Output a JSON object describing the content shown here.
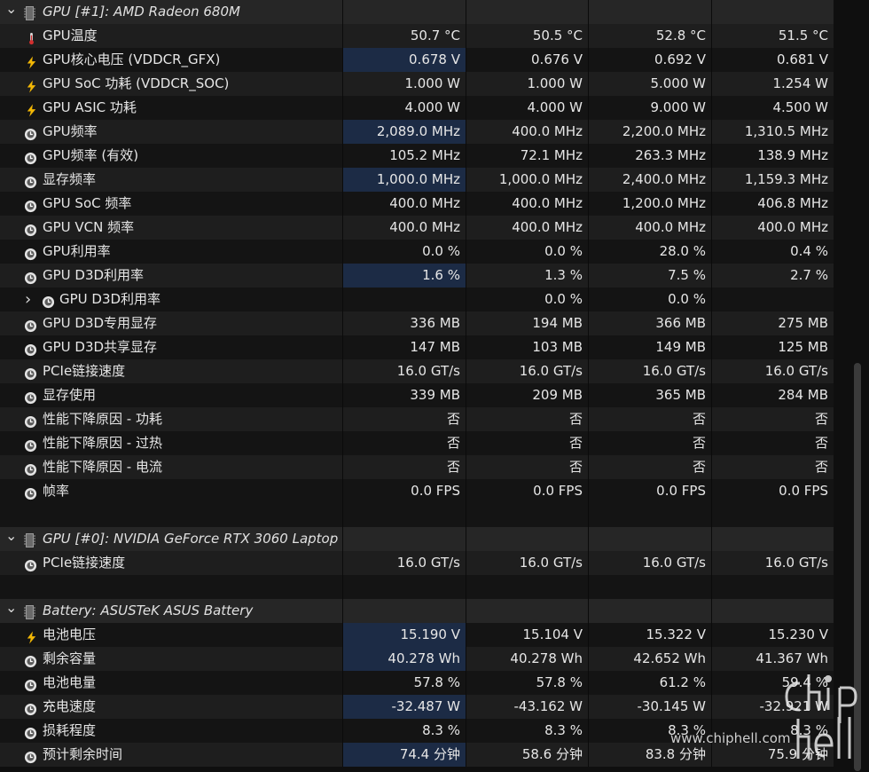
{
  "rows": [
    {
      "type": "group",
      "icon": "chip-icon",
      "label": "GPU [#1]: AMD Radeon 680M"
    },
    {
      "type": "sensor",
      "icon": "thermometer-icon",
      "label": "GPU温度",
      "values": [
        "50.7 °C",
        "50.5 °C",
        "52.8 °C",
        "51.5 °C"
      ],
      "hl": false
    },
    {
      "type": "sensor",
      "icon": "voltage-icon",
      "label": "GPU核心电压 (VDDCR_GFX)",
      "values": [
        "0.678 V",
        "0.676 V",
        "0.692 V",
        "0.681 V"
      ],
      "hl": true
    },
    {
      "type": "sensor",
      "icon": "voltage-icon",
      "label": "GPU SoC 功耗 (VDDCR_SOC)",
      "values": [
        "1.000 W",
        "1.000 W",
        "5.000 W",
        "1.254 W"
      ],
      "hl": false
    },
    {
      "type": "sensor",
      "icon": "voltage-icon",
      "label": "GPU ASIC 功耗",
      "values": [
        "4.000 W",
        "4.000 W",
        "9.000 W",
        "4.500 W"
      ],
      "hl": false
    },
    {
      "type": "sensor",
      "icon": "clock-icon",
      "label": "GPU频率",
      "values": [
        "2,089.0 MHz",
        "400.0 MHz",
        "2,200.0 MHz",
        "1,310.5 MHz"
      ],
      "hl": true
    },
    {
      "type": "sensor",
      "icon": "clock-icon",
      "label": "GPU频率 (有效)",
      "values": [
        "105.2 MHz",
        "72.1 MHz",
        "263.3 MHz",
        "138.9 MHz"
      ],
      "hl": false
    },
    {
      "type": "sensor",
      "icon": "clock-icon",
      "label": "显存频率",
      "values": [
        "1,000.0 MHz",
        "1,000.0 MHz",
        "2,400.0 MHz",
        "1,159.3 MHz"
      ],
      "hl": true
    },
    {
      "type": "sensor",
      "icon": "clock-icon",
      "label": "GPU SoC 频率",
      "values": [
        "400.0 MHz",
        "400.0 MHz",
        "1,200.0 MHz",
        "406.8 MHz"
      ],
      "hl": false
    },
    {
      "type": "sensor",
      "icon": "clock-icon",
      "label": "GPU VCN 频率",
      "values": [
        "400.0 MHz",
        "400.0 MHz",
        "400.0 MHz",
        "400.0 MHz"
      ],
      "hl": false
    },
    {
      "type": "sensor",
      "icon": "clock-icon",
      "label": "GPU利用率",
      "values": [
        "0.0 %",
        "0.0 %",
        "28.0 %",
        "0.4 %"
      ],
      "hl": false
    },
    {
      "type": "sensor",
      "icon": "clock-icon",
      "label": "GPU D3D利用率",
      "values": [
        "1.6 %",
        "1.3 %",
        "7.5 %",
        "2.7 %"
      ],
      "hl": true
    },
    {
      "type": "sub",
      "icon": "clock-icon",
      "label": "GPU D3D利用率",
      "values": [
        "",
        "0.0 %",
        "0.0 %",
        ""
      ],
      "hl": false
    },
    {
      "type": "sensor",
      "icon": "clock-icon",
      "label": "GPU D3D专用显存",
      "values": [
        "336 MB",
        "194 MB",
        "366 MB",
        "275 MB"
      ],
      "hl": false
    },
    {
      "type": "sensor",
      "icon": "clock-icon",
      "label": "GPU D3D共享显存",
      "values": [
        "147 MB",
        "103 MB",
        "149 MB",
        "125 MB"
      ],
      "hl": false
    },
    {
      "type": "sensor",
      "icon": "clock-icon",
      "label": "PCIe链接速度",
      "values": [
        "16.0 GT/s",
        "16.0 GT/s",
        "16.0 GT/s",
        "16.0 GT/s"
      ],
      "hl": false
    },
    {
      "type": "sensor",
      "icon": "clock-icon",
      "label": "显存使用",
      "values": [
        "339 MB",
        "209 MB",
        "365 MB",
        "284 MB"
      ],
      "hl": false
    },
    {
      "type": "sensor",
      "icon": "clock-icon",
      "label": "性能下降原因 - 功耗",
      "values": [
        "否",
        "否",
        "否",
        "否"
      ],
      "hl": false
    },
    {
      "type": "sensor",
      "icon": "clock-icon",
      "label": "性能下降原因 - 过热",
      "values": [
        "否",
        "否",
        "否",
        "否"
      ],
      "hl": false
    },
    {
      "type": "sensor",
      "icon": "clock-icon",
      "label": "性能下降原因 - 电流",
      "values": [
        "否",
        "否",
        "否",
        "否"
      ],
      "hl": false
    },
    {
      "type": "sensor",
      "icon": "clock-icon",
      "label": "帧率",
      "values": [
        "0.0 FPS",
        "0.0 FPS",
        "0.0 FPS",
        "0.0 FPS"
      ],
      "hl": false
    },
    {
      "type": "gap"
    },
    {
      "type": "group",
      "icon": "chip-icon",
      "label": "GPU [#0]: NVIDIA GeForce RTX 3060 Laptop"
    },
    {
      "type": "sensor",
      "icon": "clock-icon",
      "label": "PCIe链接速度",
      "values": [
        "16.0 GT/s",
        "16.0 GT/s",
        "16.0 GT/s",
        "16.0 GT/s"
      ],
      "hl": false
    },
    {
      "type": "gap"
    },
    {
      "type": "group",
      "icon": "chip-icon",
      "label": "Battery: ASUSTeK ASUS Battery"
    },
    {
      "type": "sensor",
      "icon": "voltage-icon",
      "label": "电池电压",
      "values": [
        "15.190 V",
        "15.104 V",
        "15.322 V",
        "15.230 V"
      ],
      "hl": true
    },
    {
      "type": "sensor",
      "icon": "clock-icon",
      "label": "剩余容量",
      "values": [
        "40.278 Wh",
        "40.278 Wh",
        "42.652 Wh",
        "41.367 Wh"
      ],
      "hl": true
    },
    {
      "type": "sensor",
      "icon": "clock-icon",
      "label": "电池电量",
      "values": [
        "57.8 %",
        "57.8 %",
        "61.2 %",
        "59.4 %"
      ],
      "hl": false
    },
    {
      "type": "sensor",
      "icon": "clock-icon",
      "label": "充电速度",
      "values": [
        "-32.487 W",
        "-43.162 W",
        "-30.145 W",
        "-32.921 W"
      ],
      "hl": true
    },
    {
      "type": "sensor",
      "icon": "clock-icon",
      "label": "损耗程度",
      "values": [
        "8.3 %",
        "8.3 %",
        "8.3 %",
        "8.3 %"
      ],
      "hl": false
    },
    {
      "type": "sensor",
      "icon": "clock-icon",
      "label": "预计剩余时间",
      "values": [
        "74.4 分钟",
        "58.6 分钟",
        "83.8 分钟",
        "75.9 分钟"
      ],
      "hl": true
    }
  ],
  "watermark": {
    "text": "www.chiphell.com",
    "logo_text": "chip hell"
  },
  "colors": {
    "highlight": "#1c2b45",
    "group_bg": "#262626",
    "bolt": "#f2b705",
    "thermometer": "#d32f2f"
  }
}
